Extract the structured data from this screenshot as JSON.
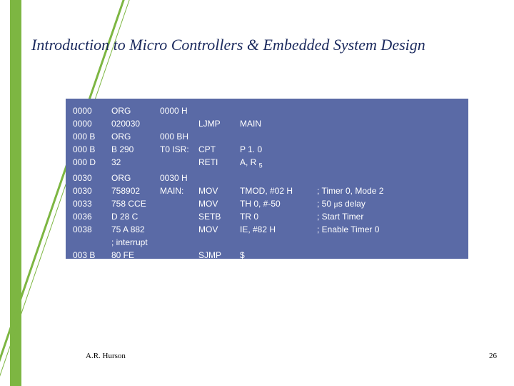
{
  "title": "Introduction to Micro Controllers & Embedded System Design",
  "footer": {
    "author": "A.R. Hurson",
    "page": "26"
  },
  "accent_color": "#7db642",
  "codebox_bg": "#5a6aa6",
  "code": {
    "rows": [
      {
        "addr": "0000",
        "mc": "ORG",
        "label": "0000 H",
        "instr": "",
        "args": "",
        "comment": ""
      },
      {
        "addr": "0000",
        "mc": "020030",
        "label": "",
        "instr": "LJMP",
        "args": "MAIN",
        "comment": ""
      },
      {
        "addr": "000 B",
        "mc": "ORG",
        "label": "000 BH",
        "instr": "",
        "args": "",
        "comment": ""
      },
      {
        "addr": "000 B",
        "mc": "B 290",
        "label": "T0 ISR:",
        "instr": "CPT",
        "args": "P 1. 0",
        "comment": ""
      },
      {
        "addr": "000 D",
        "mc": "32",
        "label": "",
        "instr": "RETI",
        "args": "A, R",
        "comment": "",
        "sub5": true
      },
      {
        "addr": "0030",
        "mc": "ORG",
        "label": "0030 H",
        "instr": "",
        "args": "",
        "comment": ""
      },
      {
        "addr": "0030",
        "mc": "758902",
        "label": "MAIN:",
        "instr": "MOV",
        "args": "TMOD, #02 H",
        "comment": "; Timer 0, Mode 2"
      },
      {
        "addr": "0033",
        "mc": "758 CCE",
        "label": "",
        "instr": "MOV",
        "args": "TH 0, #-50",
        "comment": "; 50 μs delay",
        "mu": true
      },
      {
        "addr": "0036",
        "mc": "D 28 C",
        "label": "",
        "instr": "SETB",
        "args": "TR 0",
        "comment": "; Start Timer"
      },
      {
        "addr": "0038",
        "mc": "75 A 882",
        "label": "",
        "instr": "MOV",
        "args": "IE, #82 H",
        "comment": "; Enable Timer 0"
      },
      {
        "addr": "",
        "mc": "; interrupt",
        "label": "",
        "instr": "",
        "args": "",
        "comment": ""
      },
      {
        "addr": "003 B",
        "mc": "80 FE",
        "label": "",
        "instr": "SJMP",
        "args": "$",
        "comment": ""
      }
    ]
  }
}
